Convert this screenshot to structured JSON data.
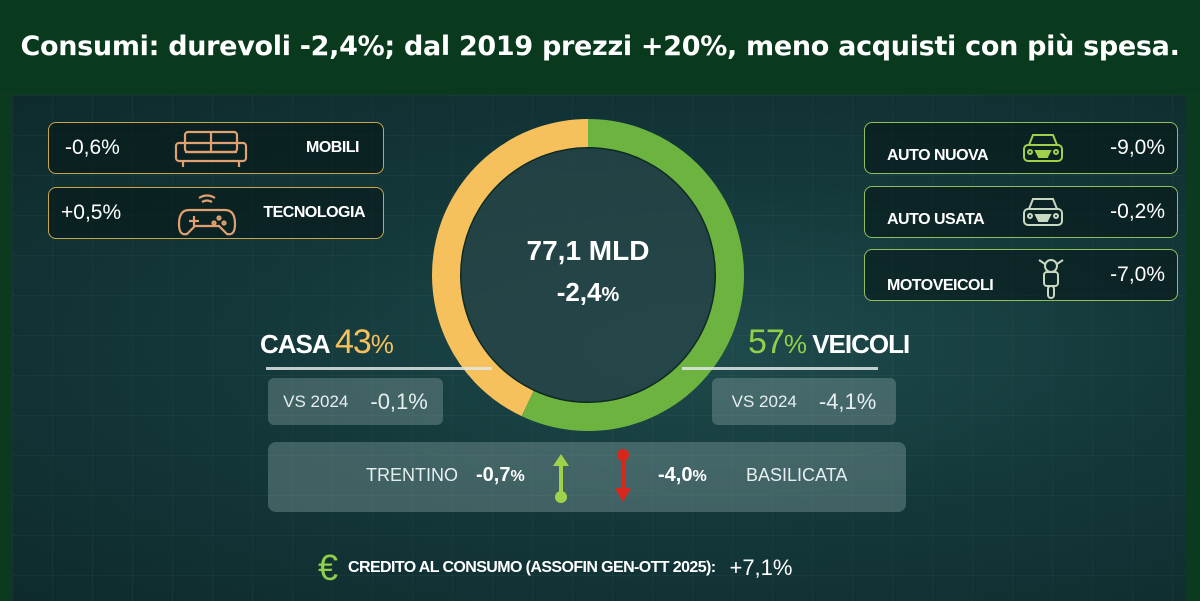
{
  "header": {
    "title": "Consumi: durevoli -2,4%; dal 2019 prezzi +20%, meno acquisti con più spesa."
  },
  "donut": {
    "total": "77,1 MLD",
    "change": "-2,4",
    "change_unit": "%"
  },
  "casa": {
    "label": "CASA",
    "share": "43",
    "unit": "%",
    "vs_label": "VS 2024",
    "vs_value": "-0,1%",
    "items": [
      {
        "value": "-0,6%",
        "label": "MOBILI",
        "icon": "sofa-icon"
      },
      {
        "value": "+0,5%",
        "label": "TECNOLOGIA",
        "icon": "gamepad-icon"
      }
    ]
  },
  "veicoli": {
    "label": "VEICOLI",
    "share": "57",
    "unit": "%",
    "vs_label": "VS 2024",
    "vs_value": "-4,1%",
    "items": [
      {
        "value": "-9,0%",
        "label": "AUTO NUOVA",
        "icon": "car-icon"
      },
      {
        "value": "-0,2%",
        "label": "AUTO USATA",
        "icon": "car-icon"
      },
      {
        "value": "-7,0%",
        "label": "MOTOVEICOLI",
        "icon": "motorcycle-icon"
      }
    ]
  },
  "regions": {
    "best_label": "TRENTINO",
    "best_value": "-0,7",
    "worst_value": "-4,0",
    "worst_label": "BASILICATA",
    "unit": "%"
  },
  "credit": {
    "label": "CREDITO AL CONSUMO (ASSOFIN GEN-OTT 2025):",
    "value": "+7,1%",
    "icon": "euro-icon"
  },
  "colors": {
    "casa": "#f6c15c",
    "veicoli": "#6db33f",
    "up": "#9fd24a",
    "down": "#d9261c",
    "header_bg": "#0a3a1d"
  },
  "chart_data": {
    "type": "pie",
    "subtype": "donut",
    "categories": [
      "VEICOLI",
      "CASA"
    ],
    "values": [
      57,
      43
    ],
    "colors": [
      "#6db33f",
      "#f6c15c"
    ],
    "center_text": [
      "77,1 MLD",
      "-2,4%"
    ]
  }
}
